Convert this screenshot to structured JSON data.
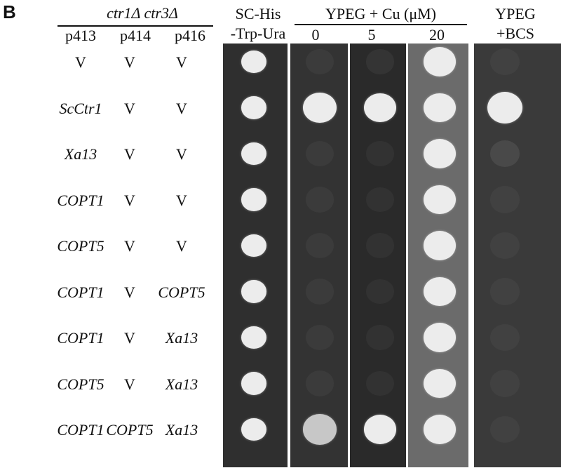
{
  "panel_label": "B",
  "strain": "ctr1Δ ctr3Δ",
  "plasmid_headers": [
    "p413",
    "p414",
    "p416"
  ],
  "media_headers": {
    "sc": [
      "SC-His",
      "-Trp-Ura"
    ],
    "ypeg_cu": "YPEG + Cu (μM)",
    "cu_concentrations": [
      "0",
      "5",
      "20"
    ],
    "ypeg_bcs": [
      "YPEG",
      "+BCS"
    ]
  },
  "rows": [
    {
      "p413": "V",
      "p414": "V",
      "p416": "V",
      "growth": [
        1.0,
        0.0,
        0.05,
        1.0,
        0.0
      ]
    },
    {
      "p413": "ScCtr1",
      "p414": "V",
      "p416": "V",
      "growth": [
        1.0,
        1.0,
        1.0,
        1.0,
        1.0
      ]
    },
    {
      "p413": "Xa13",
      "p414": "V",
      "p416": "V",
      "growth": [
        1.0,
        0.0,
        0.0,
        1.0,
        0.15
      ]
    },
    {
      "p413": "COPT1",
      "p414": "V",
      "p416": "V",
      "growth": [
        1.0,
        0.0,
        0.0,
        1.0,
        0.0
      ]
    },
    {
      "p413": "COPT5",
      "p414": "V",
      "p416": "V",
      "growth": [
        1.0,
        0.0,
        0.0,
        1.0,
        0.0
      ]
    },
    {
      "p413": "COPT1",
      "p414": "V",
      "p416": "COPT5",
      "growth": [
        1.0,
        0.0,
        0.0,
        1.0,
        0.0
      ]
    },
    {
      "p413": "COPT1",
      "p414": "V",
      "p416": "Xa13",
      "growth": [
        1.0,
        0.0,
        0.0,
        1.0,
        0.0
      ]
    },
    {
      "p413": "COPT5",
      "p414": "V",
      "p416": "Xa13",
      "growth": [
        1.0,
        0.0,
        0.0,
        1.0,
        0.0
      ]
    },
    {
      "p413": "COPT1",
      "p414": "COPT5",
      "p416": "Xa13",
      "growth": [
        1.0,
        0.6,
        1.0,
        1.0,
        0.0
      ]
    }
  ],
  "colors": {
    "plate_sc": "#2f2f2f",
    "plate_ypeg0": "#333333",
    "plate_ypeg5": "#2a2a2a",
    "plate_ypeg20": "#6b6b6b",
    "plate_bcs": "#3a3a3a",
    "colony": "#ececec"
  }
}
